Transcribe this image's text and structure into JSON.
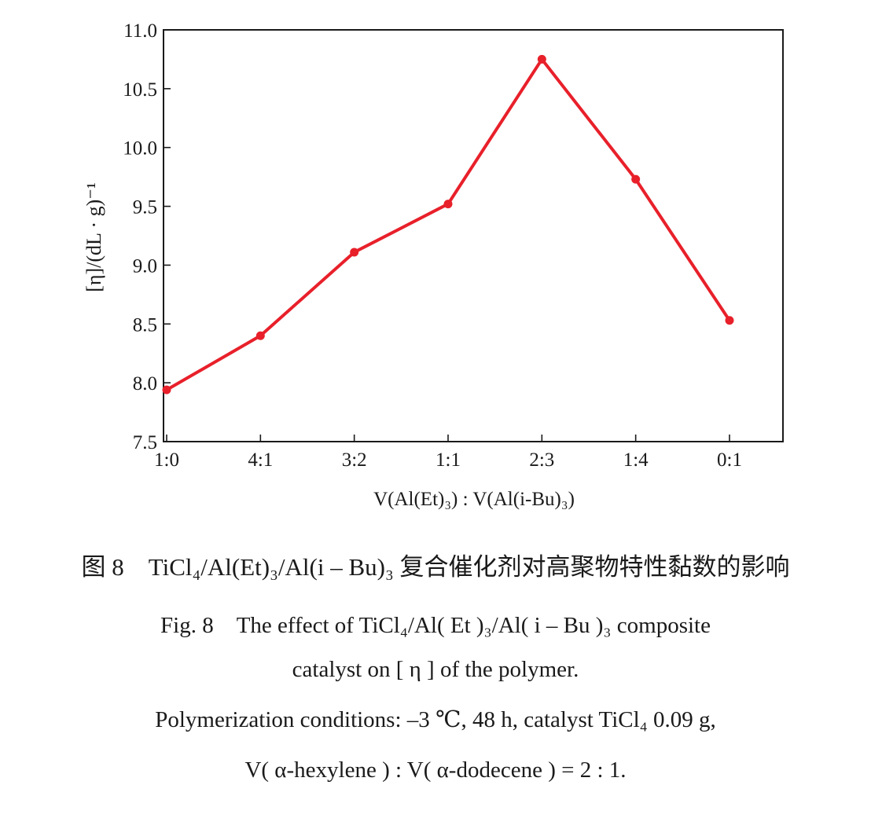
{
  "chart_data": {
    "type": "line",
    "categories": [
      "1:0",
      "4:1",
      "3:2",
      "1:1",
      "2:3",
      "1:4",
      "0:1"
    ],
    "series": [
      {
        "values": [
          7.94,
          8.4,
          9.11,
          9.52,
          10.75,
          9.73,
          8.53
        ]
      }
    ],
    "ylim": [
      7.5,
      11.0
    ],
    "yticks": [
      "7.5",
      "8.0",
      "8.5",
      "9.0",
      "9.5",
      "10.0",
      "10.5",
      "11.0"
    ],
    "ylabel": "[η]/(dL · g)⁻¹",
    "xlabel": "V(Al(Et)₃) : V(Al(i-Bu)₃)",
    "grid": false,
    "line_color": "#e8202a"
  },
  "caption": {
    "cn": "图 8　TiCl₄/Al(Et)₃/Al(i – Bu)₃ 复合催化剂对高聚物特性黏数的影响",
    "en_line1": "Fig. 8　The effect of TiCl₄/Al( Et )₃/Al( i – Bu )₃ composite",
    "en_line2": "catalyst on [ η ] of the polymer.",
    "conditions": "Polymerization conditions: –3 ℃, 48 h, catalyst TiCl₄ 0.09 g,",
    "ratio": "V( α-hexylene ) : V( α-dodecene ) = 2 : 1."
  }
}
